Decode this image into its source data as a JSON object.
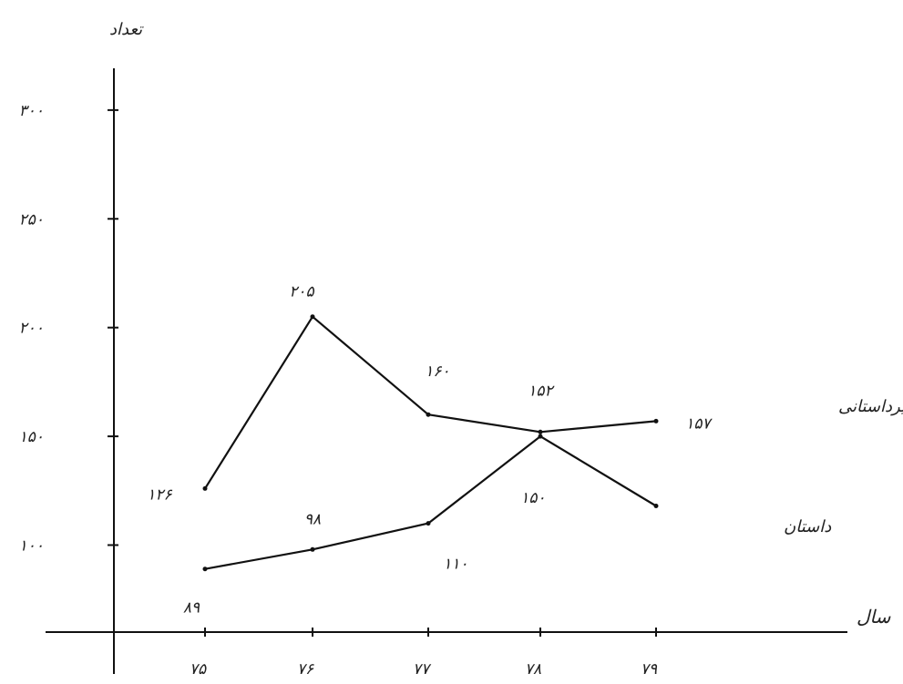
{
  "chart_data": {
    "type": "line",
    "xlabel": "سال",
    "ylabel": "تعداد",
    "categories": [
      "۷۵",
      "۷۶",
      "۷۷",
      "۷۸",
      "۷۹"
    ],
    "y_ticks": [
      {
        "value": 100,
        "label": "۱۰۰"
      },
      {
        "value": 150,
        "label": "۱۵۰"
      },
      {
        "value": 200,
        "label": "۲۰۰"
      },
      {
        "value": 250,
        "label": "۲۵۰"
      },
      {
        "value": 300,
        "label": "۳۰۰"
      }
    ],
    "ylim": [
      60,
      310
    ],
    "grid": false,
    "series": [
      {
        "name": "غیرداستانی",
        "values": [
          126,
          205,
          160,
          152,
          157
        ],
        "value_labels": [
          "۱۲۶",
          "۲۰۵",
          "۱۶۰",
          "۱۵۲",
          "۱۵۷"
        ]
      },
      {
        "name": "داستان",
        "values": [
          89,
          98,
          110,
          150,
          118
        ],
        "value_labels": [
          "۸۹",
          "۹۸",
          "۱۱۰",
          "۱۵۰",
          ""
        ]
      }
    ]
  }
}
